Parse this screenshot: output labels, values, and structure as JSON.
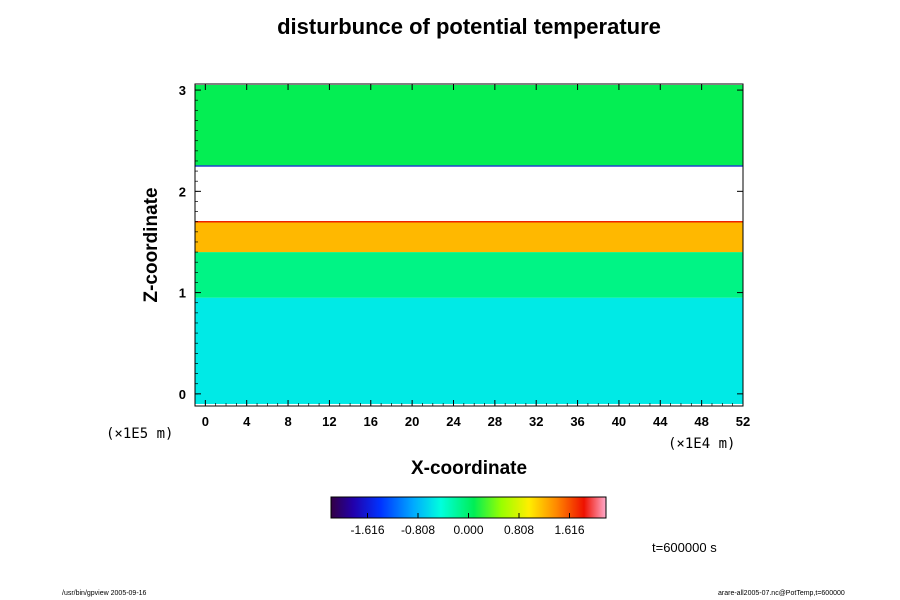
{
  "chart_data": {
    "type": "heatmap",
    "title": "disturbunce of potential temperature",
    "xlabel": "X-coordinate",
    "ylabel": "Z-coordinate",
    "xlim": [
      -1,
      52
    ],
    "ylim": [
      -0.12,
      3.06
    ],
    "x_ticks": [
      "0",
      "4",
      "8",
      "12",
      "16",
      "20",
      "24",
      "28",
      "32",
      "36",
      "40",
      "44",
      "48",
      "52"
    ],
    "y_ticks": [
      "0",
      "1",
      "2",
      "3"
    ],
    "x_unit": "(×1E4 m)",
    "y_unit": "(×1E5 m)",
    "colorbar": {
      "min": -2.2,
      "max": 2.2,
      "tick_labels": [
        "-1.616",
        "-0.808",
        "0.000",
        "0.808",
        "1.616"
      ],
      "tick_values": [
        -1.616,
        -0.808,
        0.0,
        0.808,
        1.616
      ]
    },
    "layers": [
      {
        "z": [
          -0.1,
          0.95
        ],
        "value": -0.55
      },
      {
        "z": [
          0.95,
          1.4
        ],
        "value": -0.1
      },
      {
        "z": [
          1.4,
          1.7
        ],
        "value": 1.2
      },
      {
        "z": [
          1.7,
          2.25
        ],
        "value": null
      },
      {
        "z": [
          2.25,
          3.05
        ],
        "value": 0.1
      }
    ],
    "annotations": {
      "time": "t=600000 s",
      "footer_left": "/usr/bin/gpview 2005-09-16",
      "footer_right": "arare-all2005-07.nc@PotTemp,t=600000"
    }
  }
}
